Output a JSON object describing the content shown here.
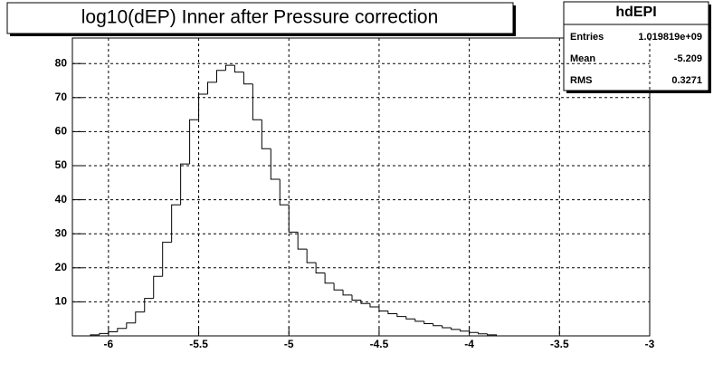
{
  "chart_data": {
    "type": "histogram",
    "title": "log10(dEP) Inner after Pressure correction",
    "bins": [
      -6.1,
      -6.05,
      -6.0,
      -5.95,
      -5.9,
      -5.85,
      -5.8,
      -5.75,
      -5.7,
      -5.65,
      -5.6,
      -5.55,
      -5.5,
      -5.45,
      -5.4,
      -5.35,
      -5.3,
      -5.25,
      -5.2,
      -5.15,
      -5.1,
      -5.05,
      -5.0,
      -4.95,
      -4.9,
      -4.85,
      -4.8,
      -4.75,
      -4.7,
      -4.65,
      -4.6,
      -4.55,
      -4.5,
      -4.45,
      -4.4,
      -4.35,
      -4.3,
      -4.25,
      -4.2,
      -4.15,
      -4.1,
      -4.05,
      -4.0,
      -3.95,
      -3.9,
      -3.85
    ],
    "values": [
      0.3,
      0.7,
      1.2,
      2.2,
      3.8,
      7,
      11,
      17.5,
      27.5,
      38.5,
      50.5,
      63.5,
      71,
      74.5,
      78,
      79.5,
      77.5,
      74,
      63.5,
      55,
      46,
      38.5,
      30.5,
      25.5,
      21.5,
      18.5,
      15.5,
      13.5,
      12,
      10.5,
      9.5,
      8.5,
      7.3,
      6.5,
      5.7,
      5,
      4.3,
      3.6,
      3,
      2.4,
      1.9,
      1.4,
      1,
      0.6,
      0.3
    ],
    "color": "#000000",
    "xlim": [
      -6.2,
      -3
    ],
    "xticks": [
      -6,
      -5.5,
      -5,
      -4.5,
      -4,
      -3.5,
      -3
    ],
    "ylim": [
      0,
      87.5
    ],
    "yticks": [
      10,
      20,
      30,
      40,
      50,
      60,
      70,
      80
    ],
    "grid": true,
    "stats": {
      "title": "hdEPI",
      "rows": [
        {
          "label": "Entries",
          "value": "1.019819e+09"
        },
        {
          "label": "Mean",
          "value": "-5.209"
        },
        {
          "label": "RMS",
          "value": "0.3271"
        }
      ]
    }
  }
}
